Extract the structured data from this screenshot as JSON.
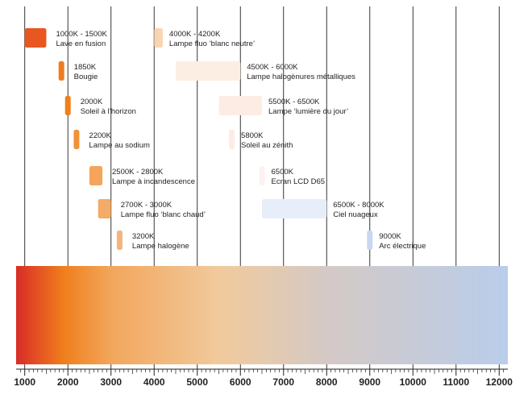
{
  "chart_data": {
    "type": "bar",
    "xlim": [
      800,
      12200
    ],
    "x_ticks": [
      "1000",
      "2000",
      "3000",
      "4000",
      "5000",
      "6000",
      "7000",
      "8000",
      "9000",
      "10000",
      "11000",
      "12000"
    ],
    "x_tick_values": [
      1000,
      2000,
      3000,
      4000,
      5000,
      6000,
      7000,
      8000,
      9000,
      10000,
      11000,
      12000
    ],
    "grid": true,
    "gradient_stops": [
      {
        "k": 800,
        "color": "#d92b27"
      },
      {
        "k": 1900,
        "color": "#f07f1c"
      },
      {
        "k": 3000,
        "color": "#f2a65c"
      },
      {
        "k": 5500,
        "color": "#f1ca9c"
      },
      {
        "k": 8000,
        "color": "#d4c9c6"
      },
      {
        "k": 12200,
        "color": "#b9cdea"
      }
    ],
    "sources": [
      {
        "range": "1000K - 1500K",
        "name": "Lave en fusion",
        "kmin": 1000,
        "kmax": 1500,
        "color": "#e8571f",
        "row": 0,
        "col": 0
      },
      {
        "range": "4000K - 4200K",
        "name": "Lampe fluo ‘blanc neutre’",
        "kmin": 4000,
        "kmax": 4200,
        "color": "#f8d5b2",
        "row": 0,
        "col": 1
      },
      {
        "range": "1850K",
        "name": "Bougie",
        "kmin": 1850,
        "kmax": 1850,
        "color": "#ef7d1e",
        "row": 1,
        "col": 0
      },
      {
        "range": "4500K - 6000K",
        "name": "Lampe halogènures métalliques",
        "kmin": 4500,
        "kmax": 6000,
        "color": "#fdeee3",
        "row": 1,
        "col": 1
      },
      {
        "range": "2000K",
        "name": "Soleil à l’horizon",
        "kmin": 2000,
        "kmax": 2000,
        "color": "#f07f1c",
        "row": 2,
        "col": 0
      },
      {
        "range": "5500K - 6500K",
        "name": "Lampe ‘lumière du jour’",
        "kmin": 5500,
        "kmax": 6500,
        "color": "#fdece4",
        "row": 2,
        "col": 1
      },
      {
        "range": "2200K",
        "name": "Lampe au sodium",
        "kmin": 2200,
        "kmax": 2200,
        "color": "#f2913a",
        "row": 3,
        "col": 0
      },
      {
        "range": "5800K",
        "name": "Soleil au zénith",
        "kmin": 5800,
        "kmax": 5800,
        "color": "#fdece4",
        "row": 3,
        "col": 1
      },
      {
        "range": "2500K - 2800K",
        "name": "Lampe à incandescence",
        "kmin": 2500,
        "kmax": 2800,
        "color": "#f4a55a",
        "row": 4,
        "col": 0
      },
      {
        "range": "6500K",
        "name": "Ecran LCD D65",
        "kmin": 6500,
        "kmax": 6500,
        "color": "#fdf2f0",
        "row": 4,
        "col": 1
      },
      {
        "range": "2700K - 3000K",
        "name": "Lampe fluo ‘blanc chaud’",
        "kmin": 2700,
        "kmax": 3000,
        "color": "#f3ab68",
        "row": 5,
        "col": 0
      },
      {
        "range": "6500K - 8000K",
        "name": "Ciel nuageux",
        "kmin": 6500,
        "kmax": 8000,
        "color": "#e8eef9",
        "row": 5,
        "col": 1
      },
      {
        "range": "3200K",
        "name": "Lampe halogène",
        "kmin": 3200,
        "kmax": 3200,
        "color": "#f4b57b",
        "row": 6,
        "col": 0
      },
      {
        "range": "9000K",
        "name": "Arc électrique",
        "kmin": 9000,
        "kmax": 9000,
        "color": "#c9d6f0",
        "row": 6,
        "col": 1
      }
    ]
  }
}
